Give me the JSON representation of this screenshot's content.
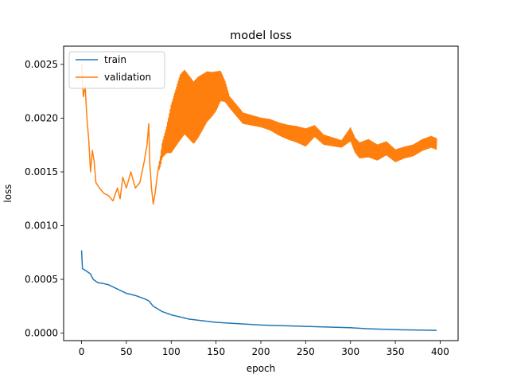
{
  "chart_data": {
    "type": "line",
    "title": "model loss",
    "xlabel": "epoch",
    "ylabel": "loss",
    "xlim": [
      -20,
      420
    ],
    "ylim": [
      -7e-05,
      0.00267
    ],
    "xticks": [
      0,
      50,
      100,
      150,
      200,
      250,
      300,
      350,
      400
    ],
    "xtick_labels": [
      "0",
      "50",
      "100",
      "150",
      "200",
      "250",
      "300",
      "350",
      "400"
    ],
    "yticks": [
      0.0,
      0.0005,
      0.001,
      0.0015,
      0.002,
      0.0025
    ],
    "ytick_labels": [
      "0.0000",
      "0.0005",
      "0.0010",
      "0.0015",
      "0.0020",
      "0.0025"
    ],
    "grid": false,
    "legend_position": "top-left",
    "series": [
      {
        "name": "train",
        "color": "#1f77b4",
        "points": [
          [
            0,
            0.00077
          ],
          [
            1,
            0.0006
          ],
          [
            5,
            0.00058
          ],
          [
            10,
            0.00055
          ],
          [
            13,
            0.0005
          ],
          [
            18,
            0.00047
          ],
          [
            25,
            0.00046
          ],
          [
            30,
            0.00045
          ],
          [
            35,
            0.00043
          ],
          [
            40,
            0.00041
          ],
          [
            45,
            0.00039
          ],
          [
            50,
            0.00037
          ],
          [
            60,
            0.00035
          ],
          [
            70,
            0.00032
          ],
          [
            75,
            0.0003
          ],
          [
            80,
            0.00025
          ],
          [
            90,
            0.0002
          ],
          [
            100,
            0.00017
          ],
          [
            110,
            0.00015
          ],
          [
            120,
            0.00013
          ],
          [
            130,
            0.00012
          ],
          [
            140,
            0.00011
          ],
          [
            150,
            0.0001
          ],
          [
            160,
            9.5e-05
          ],
          [
            170,
            9e-05
          ],
          [
            180,
            8.5e-05
          ],
          [
            190,
            8e-05
          ],
          [
            200,
            7.5e-05
          ],
          [
            220,
            7e-05
          ],
          [
            240,
            6.5e-05
          ],
          [
            260,
            6e-05
          ],
          [
            280,
            5.5e-05
          ],
          [
            300,
            5e-05
          ],
          [
            320,
            4e-05
          ],
          [
            340,
            3.5e-05
          ],
          [
            360,
            3e-05
          ],
          [
            380,
            2.8e-05
          ],
          [
            396,
            2.5e-05
          ]
        ]
      },
      {
        "name": "validation",
        "color": "#ff7f0e",
        "points": [
          [
            0,
            0.0025
          ],
          [
            2,
            0.0022
          ],
          [
            4,
            0.0023
          ],
          [
            6,
            0.002
          ],
          [
            8,
            0.0018
          ],
          [
            10,
            0.0015
          ],
          [
            12,
            0.0017
          ],
          [
            14,
            0.0016
          ],
          [
            16,
            0.0014
          ],
          [
            20,
            0.00135
          ],
          [
            25,
            0.0013
          ],
          [
            30,
            0.00128
          ],
          [
            35,
            0.00123
          ],
          [
            40,
            0.00135
          ],
          [
            43,
            0.00125
          ],
          [
            46,
            0.00145
          ],
          [
            50,
            0.00135
          ],
          [
            55,
            0.0015
          ],
          [
            60,
            0.00135
          ],
          [
            65,
            0.0014
          ],
          [
            70,
            0.0016
          ],
          [
            73,
            0.00175
          ],
          [
            75,
            0.00195
          ],
          [
            76,
            0.0016
          ],
          [
            78,
            0.00135
          ],
          [
            80,
            0.0012
          ],
          [
            82,
            0.0013
          ],
          [
            85,
            0.0015
          ],
          [
            88,
            0.0016
          ],
          [
            90,
            0.0017
          ],
          [
            95,
            0.0018
          ],
          [
            100,
            0.0019
          ],
          [
            105,
            0.002
          ],
          [
            110,
            0.0021
          ],
          [
            115,
            0.00215
          ],
          [
            120,
            0.0021
          ],
          [
            125,
            0.00205
          ],
          [
            130,
            0.0021
          ],
          [
            135,
            0.00215
          ],
          [
            140,
            0.0022
          ],
          [
            145,
            0.00222
          ],
          [
            150,
            0.00225
          ],
          [
            155,
            0.0023
          ],
          [
            160,
            0.00225
          ],
          [
            165,
            0.00215
          ],
          [
            170,
            0.0021
          ],
          [
            175,
            0.00205
          ],
          [
            180,
            0.002
          ],
          [
            190,
            0.00198
          ],
          [
            200,
            0.00196
          ],
          [
            210,
            0.00194
          ],
          [
            220,
            0.0019
          ],
          [
            230,
            0.00187
          ],
          [
            240,
            0.00185
          ],
          [
            250,
            0.00182
          ],
          [
            260,
            0.00188
          ],
          [
            270,
            0.0018
          ],
          [
            280,
            0.00178
          ],
          [
            290,
            0.00176
          ],
          [
            300,
            0.00185
          ],
          [
            305,
            0.00175
          ],
          [
            310,
            0.0017
          ],
          [
            320,
            0.00172
          ],
          [
            330,
            0.00168
          ],
          [
            340,
            0.00172
          ],
          [
            350,
            0.00165
          ],
          [
            360,
            0.00168
          ],
          [
            370,
            0.0017
          ],
          [
            380,
            0.00175
          ],
          [
            390,
            0.00178
          ],
          [
            396,
            0.00176
          ]
        ],
        "oscillation": [
          [
            86,
            2e-05
          ],
          [
            95,
            0.00012
          ],
          [
            100,
            0.00022
          ],
          [
            110,
            0.0003
          ],
          [
            130,
            0.00028
          ],
          [
            150,
            0.00018
          ],
          [
            165,
            5e-05
          ],
          [
            175,
            5e-05
          ],
          [
            200,
            4e-05
          ],
          [
            250,
            8e-05
          ],
          [
            260,
            5e-05
          ],
          [
            290,
            3e-05
          ],
          [
            300,
            6e-05
          ],
          [
            320,
            8e-05
          ],
          [
            340,
            6e-05
          ],
          [
            360,
            5e-05
          ],
          [
            396,
            5e-05
          ]
        ]
      }
    ]
  }
}
